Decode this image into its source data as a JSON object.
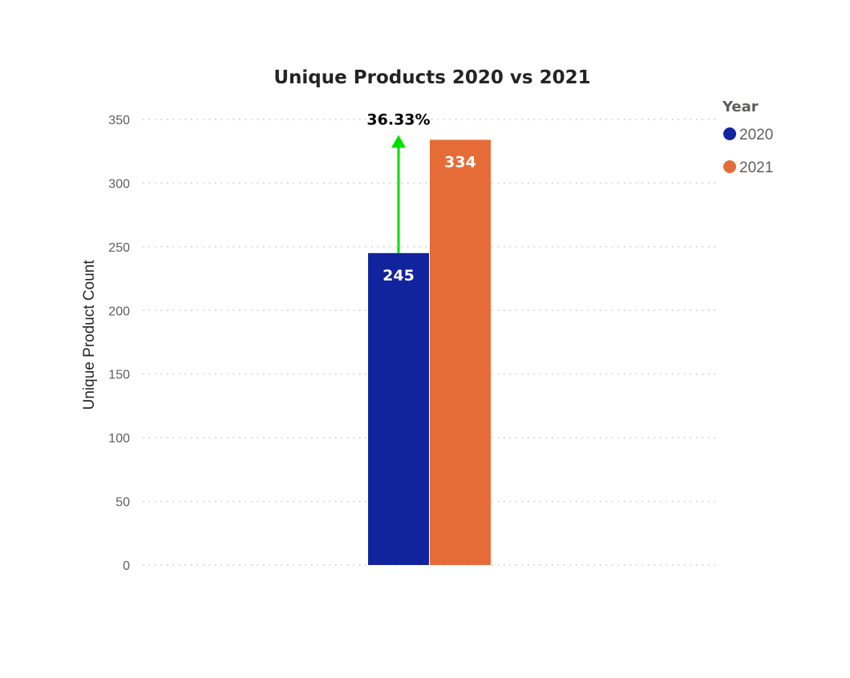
{
  "chart_data": {
    "type": "bar",
    "title": "Unique Products 2020 vs 2021",
    "xlabel": "",
    "ylabel": "Unique Product Count",
    "ylim": [
      0,
      350
    ],
    "yticks": [
      0,
      50,
      100,
      150,
      200,
      250,
      300,
      350
    ],
    "grid": true,
    "legend": {
      "title": "Year",
      "position": "top-right",
      "entries": [
        "2020",
        "2021"
      ]
    },
    "series": [
      {
        "name": "2020",
        "color": "#12239e",
        "values": [
          245
        ]
      },
      {
        "name": "2021",
        "color": "#e66c37",
        "values": [
          334
        ]
      }
    ],
    "data_labels": [
      "245",
      "334"
    ],
    "annotation": {
      "text": "36.33%",
      "arrow_color": "#00e000",
      "direction": "up"
    }
  }
}
